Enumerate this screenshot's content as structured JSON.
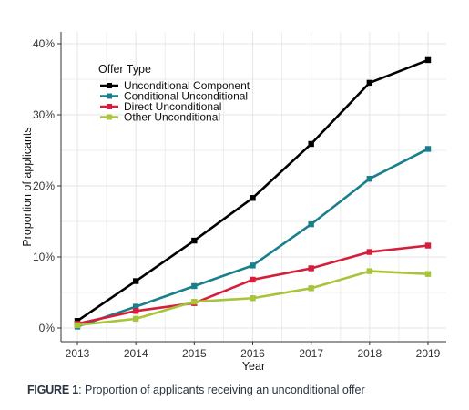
{
  "chart_data": {
    "type": "line",
    "x": [
      2013,
      2014,
      2015,
      2016,
      2017,
      2018,
      2019
    ],
    "xlabel": "Year",
    "ylabel": "Proportion of applicants",
    "ylim": [
      0,
      40
    ],
    "yticks": [
      0,
      10,
      20,
      30,
      40
    ],
    "ytick_labels": [
      "0%",
      "10%",
      "20%",
      "30%",
      "40%"
    ],
    "xtick_labels": [
      "2013",
      "2014",
      "2015",
      "2016",
      "2017",
      "2018",
      "2019"
    ],
    "grid": true,
    "legend": {
      "title": "Offer Type",
      "placement": "top-left"
    },
    "series": [
      {
        "name": "Unconditional Component",
        "color": "#000000",
        "values": [
          1.0,
          6.6,
          12.3,
          18.3,
          25.9,
          34.5,
          37.7
        ]
      },
      {
        "name": "Conditional Unconditional",
        "color": "#1a7f8c",
        "values": [
          0.2,
          3.0,
          5.9,
          8.8,
          14.6,
          21.0,
          25.2
        ]
      },
      {
        "name": "Direct Unconditional",
        "color": "#d41e3c",
        "values": [
          0.6,
          2.4,
          3.5,
          6.8,
          8.4,
          10.7,
          11.6
        ]
      },
      {
        "name": "Other Unconditional",
        "color": "#a8c43a",
        "values": [
          0.4,
          1.3,
          3.7,
          4.2,
          5.6,
          8.0,
          7.6
        ]
      }
    ]
  },
  "caption": {
    "label": "FIGURE 1",
    "text": ": Proportion of applicants receiving an unconditional offer"
  }
}
